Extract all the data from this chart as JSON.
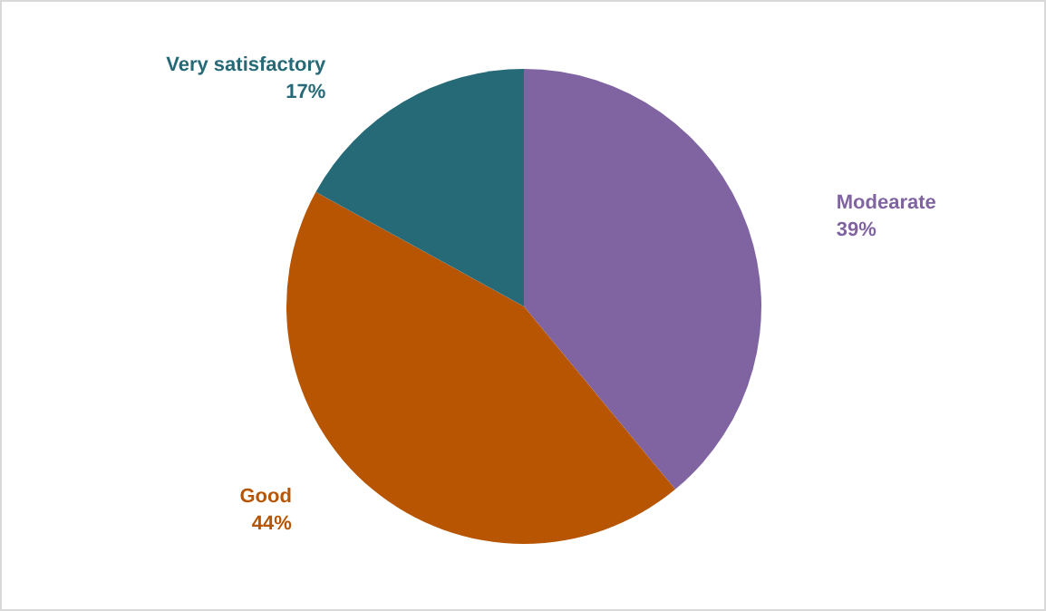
{
  "chart_data": {
    "type": "pie",
    "categories": [
      "Modearate",
      "Good",
      "Very satisfactory"
    ],
    "values": [
      39,
      44,
      17
    ],
    "value_labels": [
      "39%",
      "44%",
      "17%"
    ],
    "colors": [
      "#8064a2",
      "#b75502",
      "#266a78"
    ],
    "legend": false
  }
}
